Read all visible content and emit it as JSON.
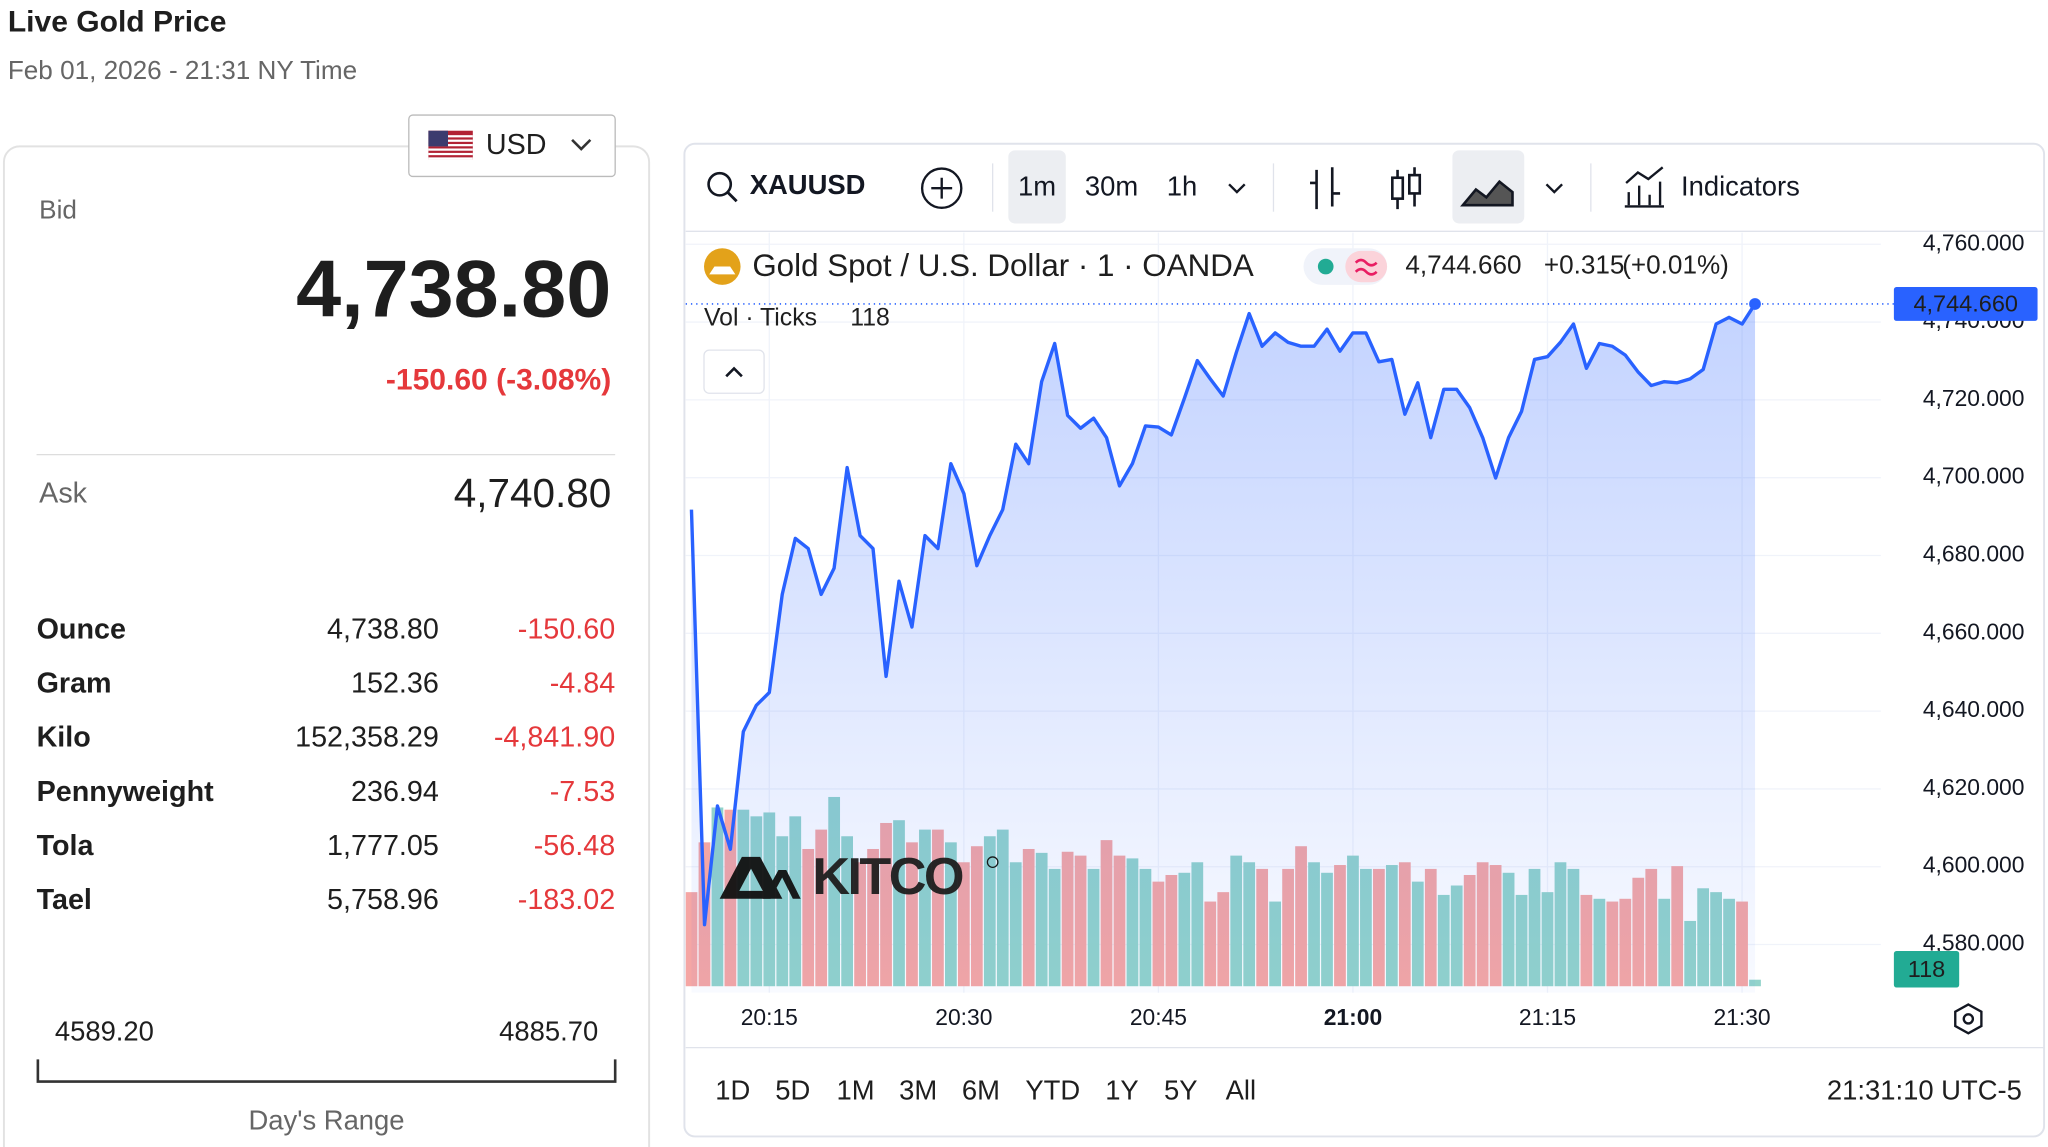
{
  "header": {
    "title": "Live Gold Price",
    "subtitle": "Feb 01, 2026 - 21:31 NY Time"
  },
  "currency": "USD",
  "quote": {
    "bid_label": "Bid",
    "bid": "4,738.80",
    "change": "-150.60 (-3.08%)",
    "ask_label": "Ask",
    "ask": "4,740.80"
  },
  "units": {
    "rows": [
      [
        "Ounce",
        "4,738.80",
        "-150.60"
      ],
      [
        "Gram",
        "152.36",
        "-4.84"
      ],
      [
        "Kilo",
        "152,358.29",
        "-4,841.90"
      ],
      [
        "Pennyweight",
        "236.94",
        "-7.53"
      ],
      [
        "Tola",
        "1,777.05",
        "-56.48"
      ],
      [
        "Tael",
        "5,758.96",
        "-183.02"
      ]
    ]
  },
  "range": {
    "low": "4589.20",
    "high": "4885.70",
    "label": "Day's Range"
  },
  "toolbar": {
    "symbol": "XAUUSD",
    "intervals": [
      "1m",
      "30m",
      "1h"
    ],
    "indicators": "Indicators"
  },
  "footer": {
    "periods": [
      "1D",
      "5D",
      "1M",
      "3M",
      "6M",
      "YTD",
      "1Y",
      "5Y",
      "All"
    ],
    "clock": "21:31:10 UTC-5"
  },
  "watermark": "KITCO",
  "chart_data": {
    "type": "line",
    "categories": [
      null,
      null,
      null,
      null,
      null,
      null,
      "20:15",
      null,
      null,
      null,
      null,
      null,
      null,
      null,
      null,
      null,
      null,
      null,
      null,
      null,
      null,
      "20:30",
      null,
      null,
      null,
      null,
      null,
      null,
      null,
      null,
      null,
      null,
      null,
      null,
      null,
      null,
      "20:45",
      null,
      null,
      null,
      null,
      null,
      null,
      null,
      null,
      null,
      null,
      null,
      null,
      null,
      null,
      "21:00",
      null,
      null,
      null,
      null,
      null,
      null,
      null,
      null,
      null,
      null,
      null,
      null,
      null,
      null,
      "21:15",
      null,
      null,
      null,
      null,
      null,
      null,
      null,
      null,
      null,
      null,
      null,
      null,
      null,
      null,
      "21:30",
      null
    ],
    "series": [
      {
        "name": "Gold Spot / U.S. Dollar · 1 · OANDA",
        "color": "#2962ff",
        "values": [
          4691.8,
          4585.1,
          4615.6,
          4604.5,
          4634.7,
          4641.5,
          4644.8,
          4670.0,
          4684.4,
          4681.8,
          4670.0,
          4676.7,
          4702.6,
          4685.1,
          4681.8,
          4648.9,
          4673.4,
          4661.6,
          4685.1,
          4681.8,
          4703.6,
          4695.9,
          4677.4,
          4685.1,
          4691.8,
          4708.6,
          4703.6,
          4724.7,
          4734.5,
          4716.0,
          4712.7,
          4715.3,
          4710.3,
          4697.9,
          4703.6,
          4713.3,
          4713.0,
          4711.0,
          4720.4,
          4730.1,
          4725.4,
          4721.0,
          4732.1,
          4742.2,
          4733.8,
          4737.2,
          4734.8,
          4733.8,
          4733.8,
          4738.2,
          4732.5,
          4737.2,
          4737.2,
          4729.8,
          4730.4,
          4716.3,
          4724.4,
          4710.3,
          4722.7,
          4722.7,
          4718.0,
          4710.3,
          4699.9,
          4710.3,
          4717.0,
          4730.4,
          4731.1,
          4734.8,
          4739.5,
          4728.1,
          4734.5,
          4733.8,
          4731.5,
          4727.1,
          4723.7,
          4724.7,
          4724.4,
          4725.4,
          4727.8,
          4739.5,
          4741.2,
          4739.5,
          4744.66
        ]
      },
      {
        "name": "Vol · Ticks",
        "up_color": "#92d3cb",
        "down_color": "#f5a6a4",
        "values": [
          1700,
          2600,
          3230,
          3190,
          3190,
          3070,
          3140,
          2710,
          3070,
          2480,
          2830,
          3420,
          2710,
          2240,
          2480,
          2950,
          3000,
          2600,
          2830,
          2830,
          2600,
          2240,
          2530,
          2710,
          2830,
          2240,
          2480,
          2410,
          2120,
          2430,
          2360,
          2120,
          2640,
          2360,
          2310,
          2120,
          1890,
          2010,
          2050,
          2240,
          1530,
          1700,
          2360,
          2240,
          2120,
          1530,
          2120,
          2530,
          2240,
          2050,
          2190,
          2360,
          2120,
          2120,
          2190,
          2240,
          1890,
          2120,
          1650,
          1820,
          2010,
          2240,
          2190,
          2050,
          1650,
          2120,
          1700,
          2240,
          2120,
          1650,
          1580,
          1530,
          1580,
          1960,
          2120,
          1580,
          2170,
          1180,
          1770,
          1700,
          1580,
          1530,
          118
        ]
      }
    ],
    "last_label": "4,744.660",
    "change": "+0.315",
    "change_pct": "(+0.01%)",
    "ylim": [
      4567.6,
      4763.0
    ],
    "yticks": [
      {
        "value": 4580,
        "label": "4,580.000"
      },
      {
        "value": 4600,
        "label": "4,600.000"
      },
      {
        "value": 4620,
        "label": "4,620.000"
      },
      {
        "value": 4640,
        "label": "4,640.000"
      },
      {
        "value": 4660,
        "label": "4,660.000"
      },
      {
        "value": 4680,
        "label": "4,680.000"
      },
      {
        "value": 4700,
        "label": "4,700.000"
      },
      {
        "value": 4720,
        "label": "4,720.000"
      },
      {
        "value": 4740,
        "label": "4,740.000"
      },
      {
        "value": 4760,
        "label": "4,760.000"
      }
    ],
    "grid": true
  }
}
